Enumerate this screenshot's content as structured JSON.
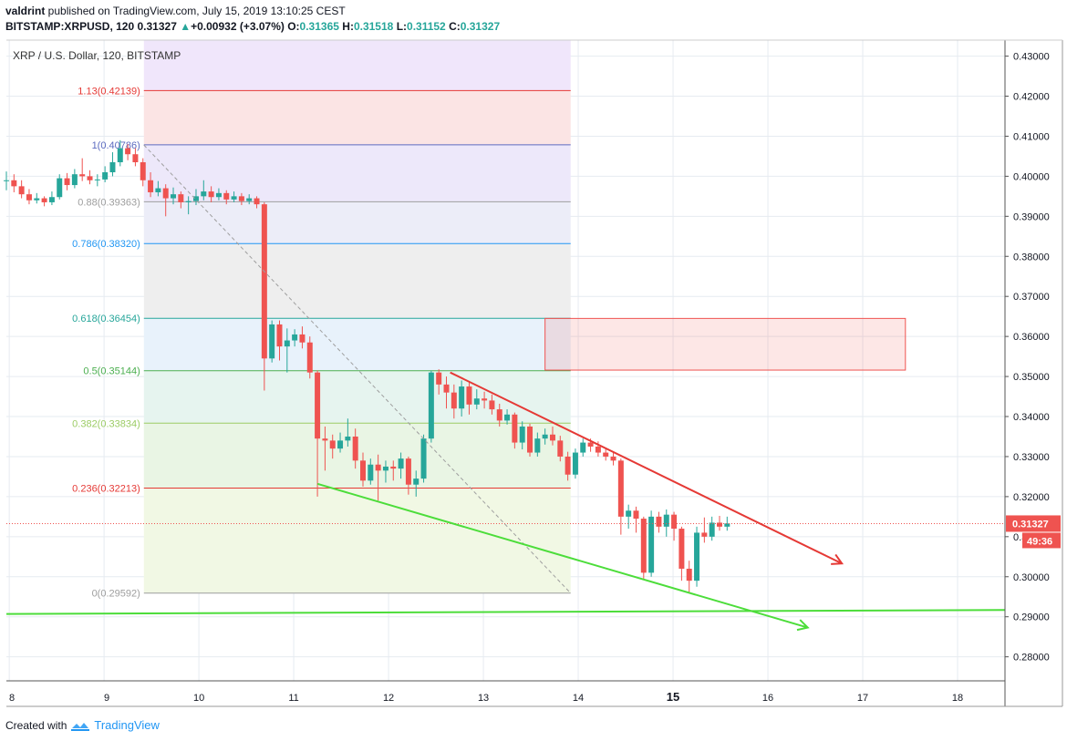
{
  "header": {
    "user": "valdrint",
    "published_text": " published on TradingView.com, July 15, 2019 13:10:25 CEST",
    "symbol_line": "BITSTAMP:XRPUSD, 120",
    "last": "0.31327",
    "change_arrow": "▲",
    "change": "+0.00932 (+3.07%)",
    "ohlc": [
      {
        "k": "O:",
        "v": "0.31365"
      },
      {
        "k": "H:",
        "v": "0.31518"
      },
      {
        "k": "L:",
        "v": "0.31152"
      },
      {
        "k": "C:",
        "v": "0.31327"
      }
    ]
  },
  "footer": {
    "created_with": "Created with",
    "brand": "TradingView",
    "logo_icon": "tradingview-cloud-icon"
  },
  "colors": {
    "up": "#26a69a",
    "down": "#ef5350",
    "fib_red": "#e53935",
    "trend_red": "#e53935",
    "trend_green": "#4cdd3a",
    "price_line": "#ef5350",
    "grid": "#e6ebf1",
    "axis_text": "#131722"
  },
  "chart_data": {
    "type": "candlestick",
    "title": "XRP / U.S. Dollar, 120, BITSTAMP",
    "ylim": [
      0.274,
      0.434
    ],
    "xlim": [
      7.97,
      18.5
    ],
    "y_ticks": [
      "0.43000",
      "0.42000",
      "0.41000",
      "0.40000",
      "0.39000",
      "0.38000",
      "0.37000",
      "0.36000",
      "0.35000",
      "0.34000",
      "0.33000",
      "0.32000",
      "0.31000",
      "0.30000",
      "0.29000",
      "0.28000"
    ],
    "x_ticks": [
      {
        "v": 8,
        "label": "8"
      },
      {
        "v": 9,
        "label": "9"
      },
      {
        "v": 10,
        "label": "10"
      },
      {
        "v": 11,
        "label": "11"
      },
      {
        "v": 12,
        "label": "12"
      },
      {
        "v": 13,
        "label": "13"
      },
      {
        "v": 14,
        "label": "14"
      },
      {
        "v": 15,
        "label": "15",
        "bold": true
      },
      {
        "v": 16,
        "label": "16"
      },
      {
        "v": 17,
        "label": "17"
      },
      {
        "v": 18,
        "label": "18"
      }
    ],
    "price_label": "0.31327",
    "countdown_label": "49:36",
    "price_line": 0.31327,
    "fib_range": {
      "x_start": 9.42,
      "x_end": 13.92
    },
    "fib_levels": [
      {
        "label": "1.13(0.42139)",
        "value": 0.42139,
        "color": "#e53935",
        "fill": "#fbe4e4"
      },
      {
        "label": "1(0.40786)",
        "value": 0.40786,
        "color": "#5c6bc0",
        "fill": "#ede8fa"
      },
      {
        "label": "0.88(0.39363)",
        "value": 0.39363,
        "color": "#9e9e9e",
        "fill": "#ecedf8"
      },
      {
        "label": "0.786(0.38320)",
        "value": 0.3832,
        "color": "#2196f3",
        "fill": "#eeeeee"
      },
      {
        "label": "0.618(0.36454)",
        "value": 0.36454,
        "color": "#26a69a",
        "fill": "#e8f2fb"
      },
      {
        "label": "0.5(0.35144)",
        "value": 0.35144,
        "color": "#4caf50",
        "fill": "#e6f4ef"
      },
      {
        "label": "0.382(0.33834)",
        "value": 0.33834,
        "color": "#9ccc65",
        "fill": "#e9f5e4"
      },
      {
        "label": "0.236(0.32213)",
        "value": 0.32213,
        "color": "#e53935",
        "fill": "#f1f8e4"
      },
      {
        "label": "0(0.29592)",
        "value": 0.29592,
        "color": "#9e9e9e",
        "fill": "#fbe8e8"
      }
    ],
    "resistance_zone": {
      "x0": 13.65,
      "x1": 17.45,
      "y0": 0.3516,
      "y1": 0.3645
    },
    "trendlines": [
      {
        "kind": "dashed",
        "color": "#9e9e9e",
        "x0": 9.42,
        "y0": 0.4078,
        "x1": 13.92,
        "y1": 0.2959,
        "arrow": false
      },
      {
        "kind": "solid",
        "color": "#e53935",
        "x0": 12.65,
        "y0": 0.351,
        "x1": 16.78,
        "y1": 0.3033,
        "arrow": true
      },
      {
        "kind": "solid",
        "color": "#4cdd3a",
        "x0": 11.25,
        "y0": 0.3232,
        "x1": 16.42,
        "y1": 0.2873,
        "arrow": true
      },
      {
        "kind": "solid",
        "color": "#4cdd3a",
        "x0": 7.97,
        "y0": 0.2907,
        "x1": 18.5,
        "y1": 0.2917,
        "arrow": false
      }
    ],
    "candles": [
      [
        7.97,
        0.3988,
        0.399,
        0.4012,
        0.3965
      ],
      [
        8.05,
        0.399,
        0.3975,
        0.4005,
        0.396
      ],
      [
        8.13,
        0.3975,
        0.3955,
        0.399,
        0.3945
      ],
      [
        8.21,
        0.3955,
        0.394,
        0.3968,
        0.393
      ],
      [
        8.29,
        0.394,
        0.3945,
        0.3958,
        0.3932
      ],
      [
        8.37,
        0.3945,
        0.3935,
        0.395,
        0.3925
      ],
      [
        8.45,
        0.3935,
        0.3948,
        0.3962,
        0.3928
      ],
      [
        8.53,
        0.3948,
        0.3995,
        0.4005,
        0.3942
      ],
      [
        8.61,
        0.3995,
        0.3978,
        0.4008,
        0.3965
      ],
      [
        8.69,
        0.3978,
        0.4005,
        0.4018,
        0.397
      ],
      [
        8.77,
        0.4005,
        0.4,
        0.4045,
        0.3988
      ],
      [
        8.85,
        0.4,
        0.399,
        0.4015,
        0.398
      ],
      [
        8.93,
        0.399,
        0.3992,
        0.4005,
        0.3975
      ],
      [
        9.01,
        0.3992,
        0.401,
        0.4025,
        0.3985
      ],
      [
        9.09,
        0.401,
        0.4035,
        0.406,
        0.4
      ],
      [
        9.17,
        0.4035,
        0.407,
        0.409,
        0.4025
      ],
      [
        9.25,
        0.407,
        0.4055,
        0.408,
        0.404
      ],
      [
        9.33,
        0.4055,
        0.4035,
        0.407,
        0.4025
      ],
      [
        9.41,
        0.4035,
        0.399,
        0.4045,
        0.3975
      ],
      [
        9.49,
        0.399,
        0.396,
        0.401,
        0.3948
      ],
      [
        9.57,
        0.396,
        0.397,
        0.3988,
        0.395
      ],
      [
        9.65,
        0.397,
        0.3945,
        0.398,
        0.39
      ],
      [
        9.73,
        0.3945,
        0.3955,
        0.3972,
        0.393
      ],
      [
        9.81,
        0.3955,
        0.3935,
        0.3962,
        0.392
      ],
      [
        9.89,
        0.3935,
        0.3938,
        0.395,
        0.3905
      ],
      [
        9.97,
        0.3938,
        0.395,
        0.3968,
        0.3928
      ],
      [
        10.05,
        0.395,
        0.3962,
        0.399,
        0.394
      ],
      [
        10.13,
        0.3962,
        0.3948,
        0.3975,
        0.3935
      ],
      [
        10.21,
        0.3948,
        0.3958,
        0.397,
        0.394
      ],
      [
        10.29,
        0.3958,
        0.3942,
        0.3965,
        0.393
      ],
      [
        10.37,
        0.3942,
        0.395,
        0.3962,
        0.3935
      ],
      [
        10.45,
        0.395,
        0.3938,
        0.3958,
        0.3928
      ],
      [
        10.53,
        0.3938,
        0.3945,
        0.3955,
        0.393
      ],
      [
        10.61,
        0.3945,
        0.393,
        0.395,
        0.392
      ],
      [
        10.69,
        0.393,
        0.3545,
        0.3935,
        0.3465
      ],
      [
        10.77,
        0.3545,
        0.363,
        0.364,
        0.3535
      ],
      [
        10.85,
        0.363,
        0.3575,
        0.364,
        0.354
      ],
      [
        10.93,
        0.3575,
        0.359,
        0.362,
        0.351
      ],
      [
        11.01,
        0.359,
        0.3605,
        0.3618,
        0.3575
      ],
      [
        11.09,
        0.3605,
        0.3585,
        0.3625,
        0.357
      ],
      [
        11.17,
        0.3585,
        0.351,
        0.36,
        0.3495
      ],
      [
        11.25,
        0.351,
        0.3345,
        0.3515,
        0.32
      ],
      [
        11.33,
        0.3345,
        0.334,
        0.3375,
        0.3265
      ],
      [
        11.41,
        0.334,
        0.332,
        0.3355,
        0.3295
      ],
      [
        11.49,
        0.332,
        0.334,
        0.336,
        0.331
      ],
      [
        11.57,
        0.334,
        0.335,
        0.3395,
        0.3325
      ],
      [
        11.65,
        0.335,
        0.329,
        0.337,
        0.327
      ],
      [
        11.73,
        0.329,
        0.324,
        0.331,
        0.3225
      ],
      [
        11.81,
        0.324,
        0.328,
        0.3295,
        0.323
      ],
      [
        11.89,
        0.328,
        0.3265,
        0.3305,
        0.319
      ],
      [
        11.97,
        0.3265,
        0.3275,
        0.329,
        0.3235
      ],
      [
        12.05,
        0.3275,
        0.327,
        0.329,
        0.324
      ],
      [
        12.13,
        0.327,
        0.3295,
        0.331,
        0.3245
      ],
      [
        12.21,
        0.3295,
        0.323,
        0.33,
        0.3205
      ],
      [
        12.29,
        0.323,
        0.3245,
        0.3265,
        0.32
      ],
      [
        12.37,
        0.3245,
        0.3345,
        0.3355,
        0.3235
      ],
      [
        12.45,
        0.3345,
        0.351,
        0.3515,
        0.3335
      ],
      [
        12.53,
        0.351,
        0.348,
        0.3518,
        0.3455
      ],
      [
        12.61,
        0.348,
        0.346,
        0.35,
        0.342
      ],
      [
        12.69,
        0.346,
        0.342,
        0.348,
        0.3395
      ],
      [
        12.77,
        0.342,
        0.3475,
        0.349,
        0.34
      ],
      [
        12.85,
        0.3475,
        0.343,
        0.3485,
        0.3405
      ],
      [
        12.93,
        0.343,
        0.3445,
        0.3468,
        0.3418
      ],
      [
        13.01,
        0.3445,
        0.344,
        0.3462,
        0.342
      ],
      [
        13.09,
        0.344,
        0.3418,
        0.3455,
        0.3405
      ],
      [
        13.17,
        0.3418,
        0.339,
        0.3432,
        0.3375
      ],
      [
        13.25,
        0.339,
        0.3405,
        0.3418,
        0.338
      ],
      [
        13.33,
        0.3405,
        0.3335,
        0.341,
        0.332
      ],
      [
        13.41,
        0.3335,
        0.3375,
        0.3388,
        0.3318
      ],
      [
        13.49,
        0.3375,
        0.331,
        0.3382,
        0.33
      ],
      [
        13.57,
        0.331,
        0.3345,
        0.336,
        0.33
      ],
      [
        13.65,
        0.3345,
        0.3355,
        0.337,
        0.333
      ],
      [
        13.73,
        0.3355,
        0.334,
        0.3375,
        0.3328
      ],
      [
        13.81,
        0.334,
        0.33,
        0.3352,
        0.3288
      ],
      [
        13.89,
        0.33,
        0.3255,
        0.3312,
        0.324
      ],
      [
        13.97,
        0.3255,
        0.331,
        0.332,
        0.3245
      ],
      [
        14.05,
        0.331,
        0.3335,
        0.3345,
        0.33
      ],
      [
        14.13,
        0.3335,
        0.3325,
        0.3345,
        0.3312
      ],
      [
        14.21,
        0.3325,
        0.331,
        0.3338,
        0.33
      ],
      [
        14.29,
        0.331,
        0.33,
        0.332,
        0.329
      ],
      [
        14.37,
        0.33,
        0.329,
        0.3312,
        0.3278
      ],
      [
        14.45,
        0.329,
        0.315,
        0.3295,
        0.3105
      ],
      [
        14.53,
        0.315,
        0.3165,
        0.318,
        0.312
      ],
      [
        14.61,
        0.3165,
        0.3145,
        0.3175,
        0.311
      ],
      [
        14.69,
        0.3145,
        0.301,
        0.315,
        0.2995
      ],
      [
        14.77,
        0.301,
        0.315,
        0.3165,
        0.3
      ],
      [
        14.85,
        0.315,
        0.3125,
        0.3162,
        0.311
      ],
      [
        14.93,
        0.3125,
        0.3155,
        0.3168,
        0.31
      ],
      [
        15.01,
        0.3155,
        0.312,
        0.3162,
        0.309
      ],
      [
        15.09,
        0.312,
        0.302,
        0.3125,
        0.299
      ],
      [
        15.17,
        0.302,
        0.299,
        0.304,
        0.296
      ],
      [
        15.25,
        0.299,
        0.311,
        0.3125,
        0.2975
      ],
      [
        15.33,
        0.311,
        0.31,
        0.3148,
        0.3085
      ],
      [
        15.41,
        0.31,
        0.3135,
        0.315,
        0.309
      ],
      [
        15.49,
        0.3135,
        0.3125,
        0.3152,
        0.3115
      ],
      [
        15.57,
        0.3125,
        0.3133,
        0.315,
        0.3115
      ]
    ]
  }
}
